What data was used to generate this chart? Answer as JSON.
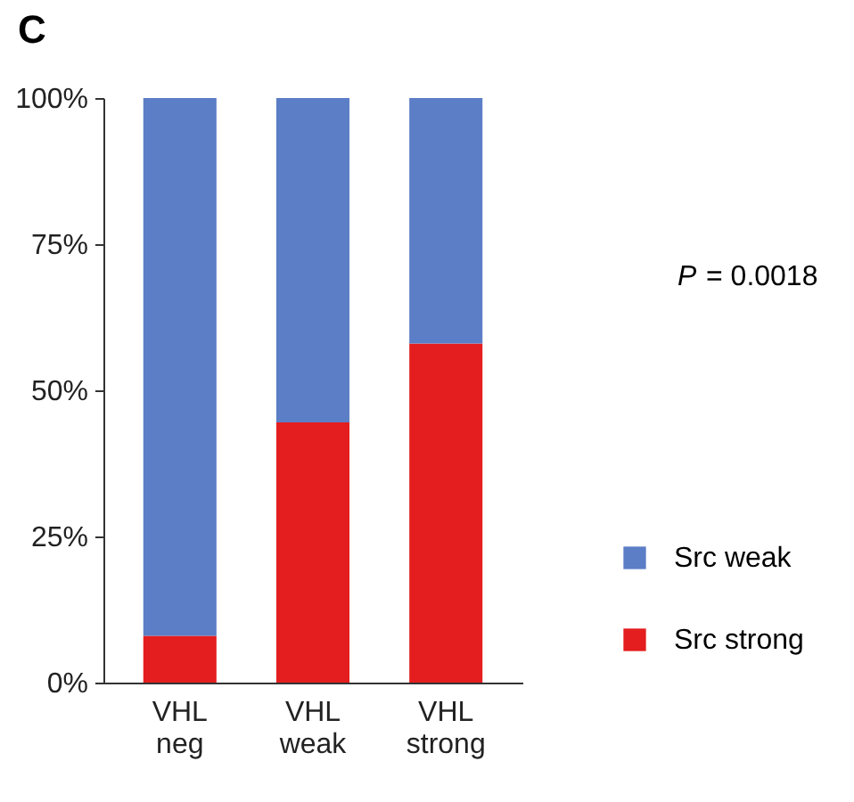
{
  "chart_data": {
    "type": "bar",
    "title": "C",
    "categories": [
      "VHL neg",
      "VHL weak",
      "VHL strong"
    ],
    "stacked": true,
    "series": [
      {
        "name": "Src strong",
        "color": "#e41e1e",
        "values": [
          8,
          44.5,
          58
        ]
      },
      {
        "name": "Src weak",
        "color": "#5b7ec6",
        "values": [
          92,
          55.5,
          42
        ]
      }
    ],
    "ylim": [
      0,
      100
    ],
    "yticks": [
      {
        "value": 0,
        "label": "0%"
      },
      {
        "value": 25,
        "label": "25%"
      },
      {
        "value": 50,
        "label": "50%"
      },
      {
        "value": 75,
        "label": "75%"
      },
      {
        "value": 100,
        "label": "100%"
      }
    ],
    "grid": false,
    "legend": "right",
    "annotations": [
      "P = 0.0018"
    ]
  }
}
